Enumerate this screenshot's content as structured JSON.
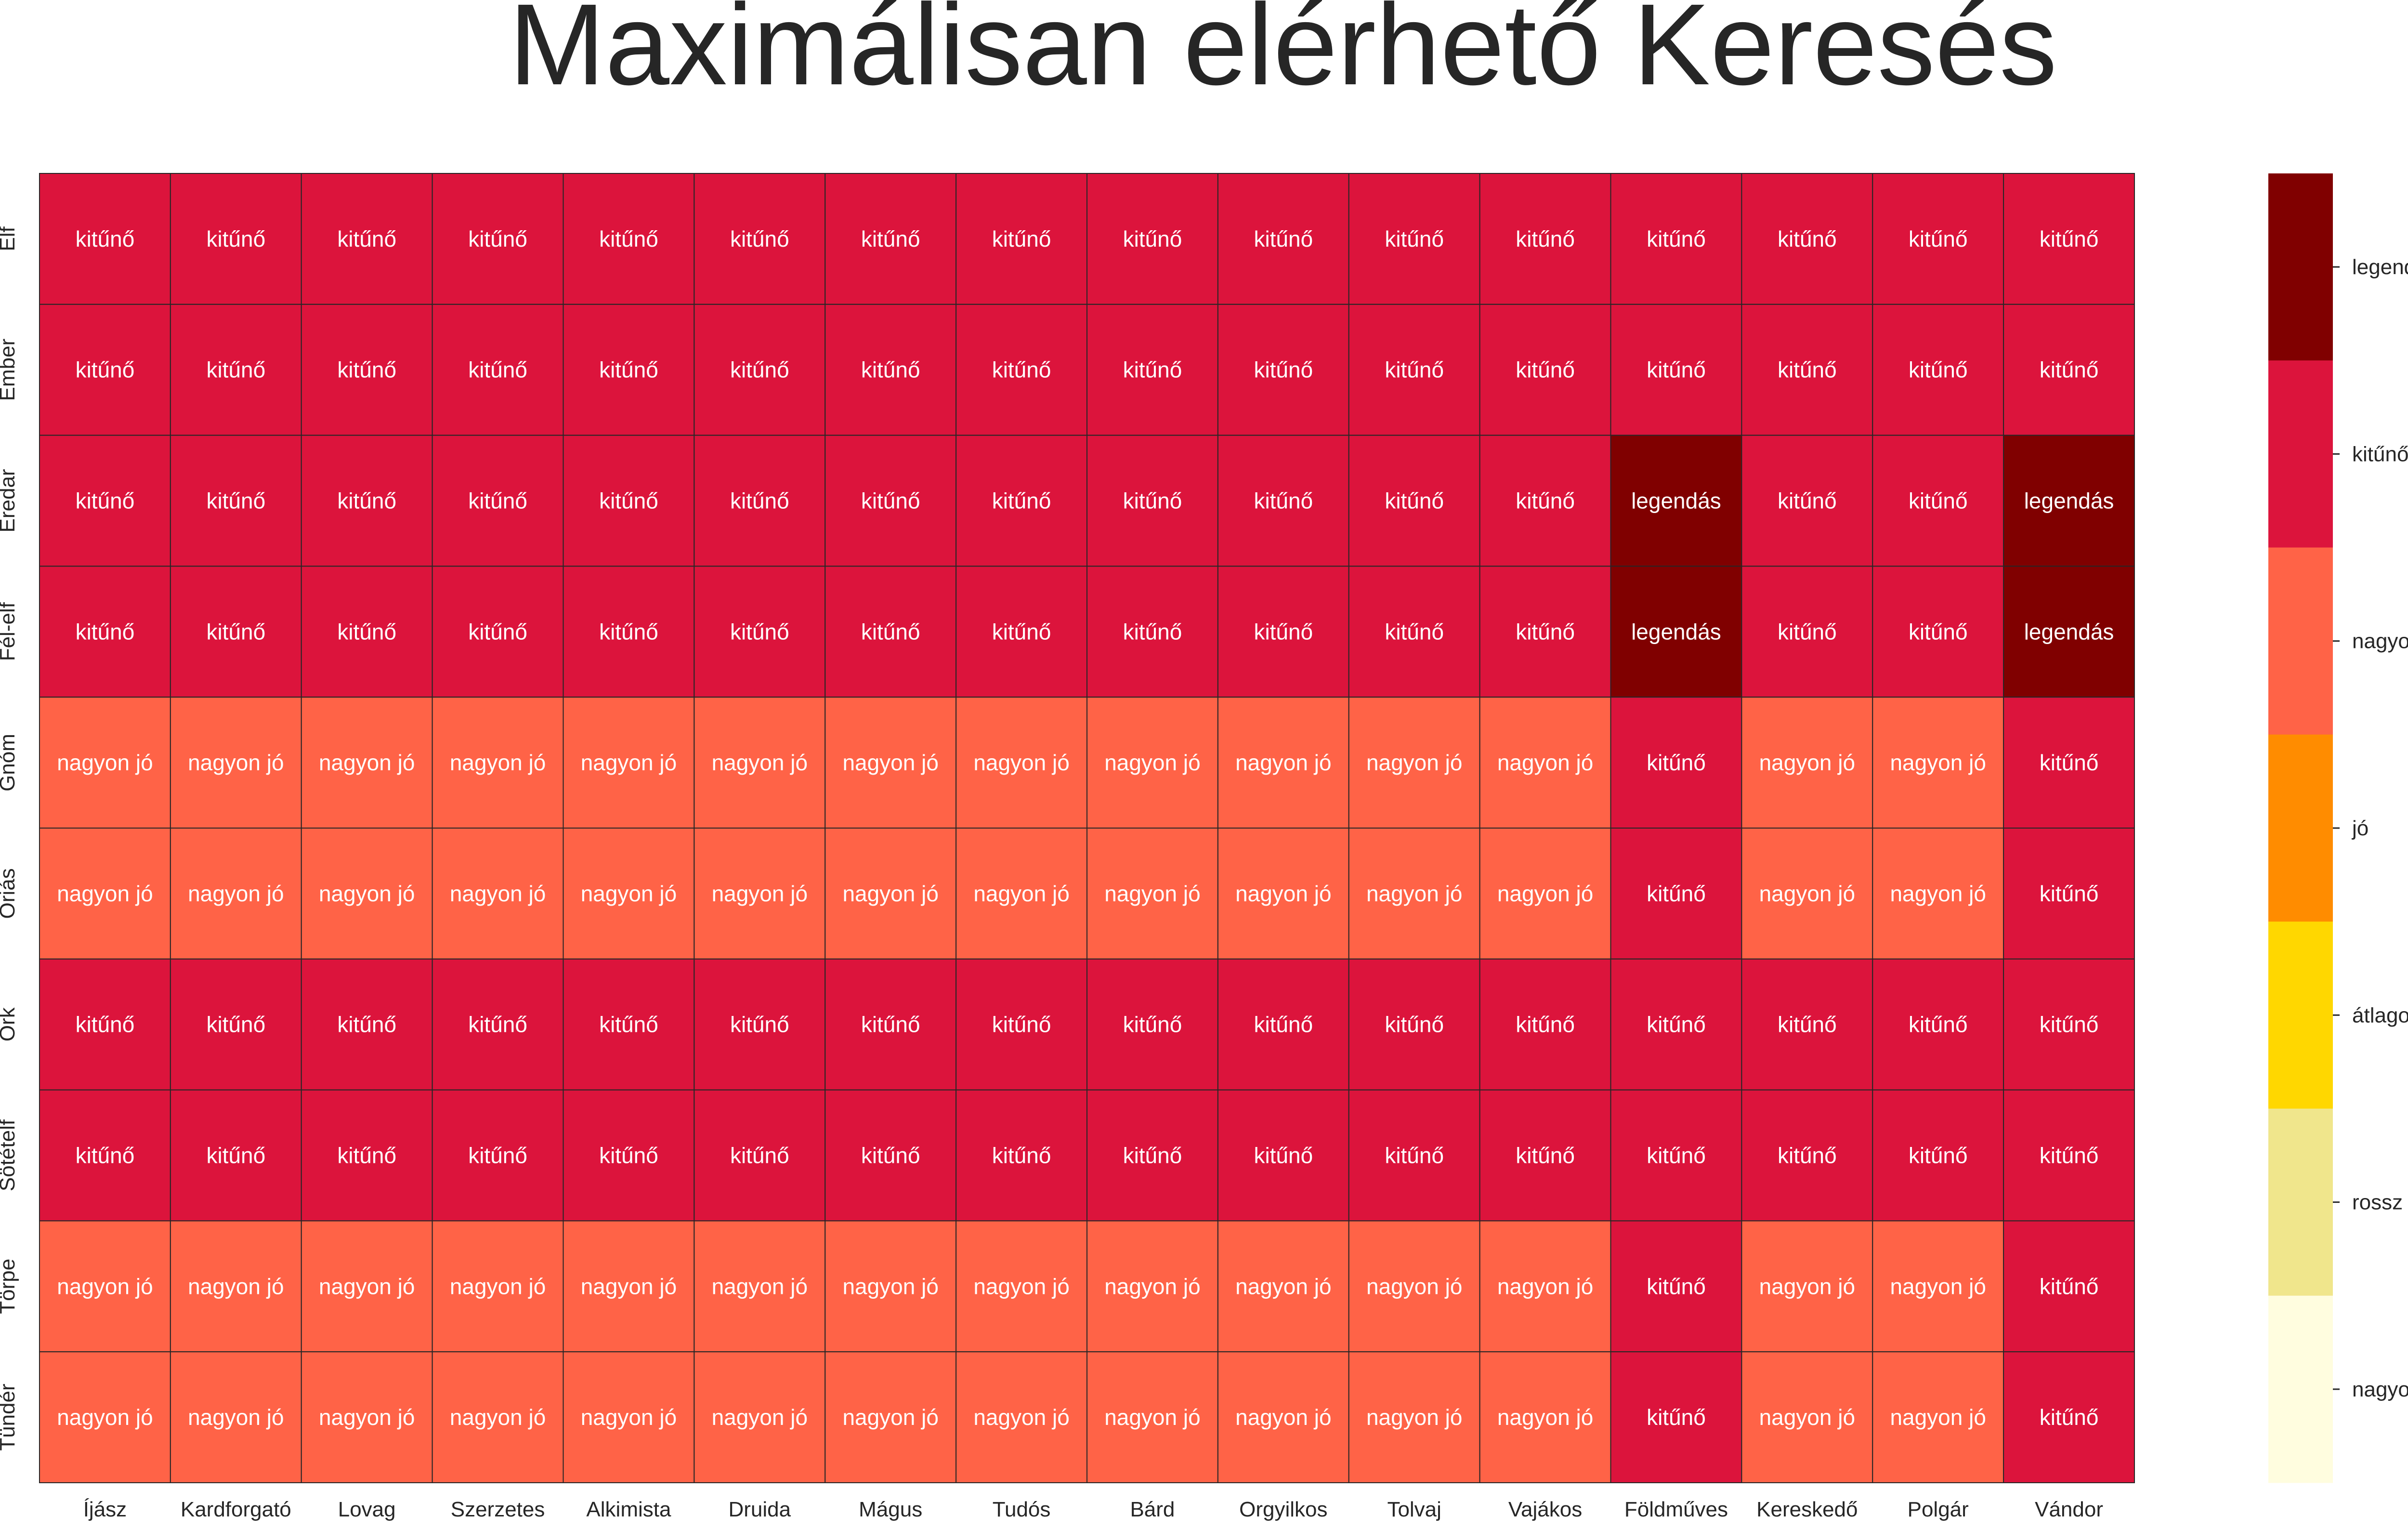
{
  "chart_data": {
    "type": "heatmap",
    "title": "Maximálisan elérhető Keresés",
    "xlabel": "",
    "ylabel": "",
    "x_categories": [
      "Íjász",
      "Kardforgató",
      "Lovag",
      "Szerzetes",
      "Alkimista",
      "Druida",
      "Mágus",
      "Tudós",
      "Bárd",
      "Orgyilkos",
      "Tolvaj",
      "Vajákos",
      "Földműves",
      "Kereskedő",
      "Polgár",
      "Vándor"
    ],
    "y_categories": [
      "Elf",
      "Ember",
      "Eredar",
      "Fél-elf",
      "Gnóm",
      "Óriás",
      "Ork",
      "Sötételf",
      "Törpe",
      "Tündér"
    ],
    "levels": [
      "nagyon rossz",
      "rossz",
      "átlagos",
      "jó",
      "nagyon jó",
      "kitűnő",
      "legendás"
    ],
    "level_colors": [
      "#fffddf",
      "#f0e68c",
      "#ffd700",
      "#ff8c00",
      "#ff6347",
      "#dc143c",
      "#800000"
    ],
    "values": [
      [
        "kitűnő",
        "kitűnő",
        "kitűnő",
        "kitűnő",
        "kitűnő",
        "kitűnő",
        "kitűnő",
        "kitűnő",
        "kitűnő",
        "kitűnő",
        "kitűnő",
        "kitűnő",
        "kitűnő",
        "kitűnő",
        "kitűnő",
        "kitűnő"
      ],
      [
        "kitűnő",
        "kitűnő",
        "kitűnő",
        "kitűnő",
        "kitűnő",
        "kitűnő",
        "kitűnő",
        "kitűnő",
        "kitűnő",
        "kitűnő",
        "kitűnő",
        "kitűnő",
        "kitűnő",
        "kitűnő",
        "kitűnő",
        "kitűnő"
      ],
      [
        "kitűnő",
        "kitűnő",
        "kitűnő",
        "kitűnő",
        "kitűnő",
        "kitűnő",
        "kitűnő",
        "kitűnő",
        "kitűnő",
        "kitűnő",
        "kitűnő",
        "kitűnő",
        "legendás",
        "kitűnő",
        "kitűnő",
        "legendás"
      ],
      [
        "kitűnő",
        "kitűnő",
        "kitűnő",
        "kitűnő",
        "kitűnő",
        "kitűnő",
        "kitűnő",
        "kitűnő",
        "kitűnő",
        "kitűnő",
        "kitűnő",
        "kitűnő",
        "legendás",
        "kitűnő",
        "kitűnő",
        "legendás"
      ],
      [
        "nagyon jó",
        "nagyon jó",
        "nagyon jó",
        "nagyon jó",
        "nagyon jó",
        "nagyon jó",
        "nagyon jó",
        "nagyon jó",
        "nagyon jó",
        "nagyon jó",
        "nagyon jó",
        "nagyon jó",
        "kitűnő",
        "nagyon jó",
        "nagyon jó",
        "kitűnő"
      ],
      [
        "nagyon jó",
        "nagyon jó",
        "nagyon jó",
        "nagyon jó",
        "nagyon jó",
        "nagyon jó",
        "nagyon jó",
        "nagyon jó",
        "nagyon jó",
        "nagyon jó",
        "nagyon jó",
        "nagyon jó",
        "kitűnő",
        "nagyon jó",
        "nagyon jó",
        "kitűnő"
      ],
      [
        "kitűnő",
        "kitűnő",
        "kitűnő",
        "kitűnő",
        "kitűnő",
        "kitűnő",
        "kitűnő",
        "kitűnő",
        "kitűnő",
        "kitűnő",
        "kitűnő",
        "kitűnő",
        "kitűnő",
        "kitűnő",
        "kitűnő",
        "kitűnő"
      ],
      [
        "kitűnő",
        "kitűnő",
        "kitűnő",
        "kitűnő",
        "kitűnő",
        "kitűnő",
        "kitűnő",
        "kitűnő",
        "kitűnő",
        "kitűnő",
        "kitűnő",
        "kitűnő",
        "kitűnő",
        "kitűnő",
        "kitűnő",
        "kitűnő"
      ],
      [
        "nagyon jó",
        "nagyon jó",
        "nagyon jó",
        "nagyon jó",
        "nagyon jó",
        "nagyon jó",
        "nagyon jó",
        "nagyon jó",
        "nagyon jó",
        "nagyon jó",
        "nagyon jó",
        "nagyon jó",
        "kitűnő",
        "nagyon jó",
        "nagyon jó",
        "kitűnő"
      ],
      [
        "nagyon jó",
        "nagyon jó",
        "nagyon jó",
        "nagyon jó",
        "nagyon jó",
        "nagyon jó",
        "nagyon jó",
        "nagyon jó",
        "nagyon jó",
        "nagyon jó",
        "nagyon jó",
        "nagyon jó",
        "kitűnő",
        "nagyon jó",
        "nagyon jó",
        "kitűnő"
      ]
    ],
    "cell_text_color": "#ffffff",
    "grid_line_color": "#262626",
    "legend": "colorbar-right"
  }
}
